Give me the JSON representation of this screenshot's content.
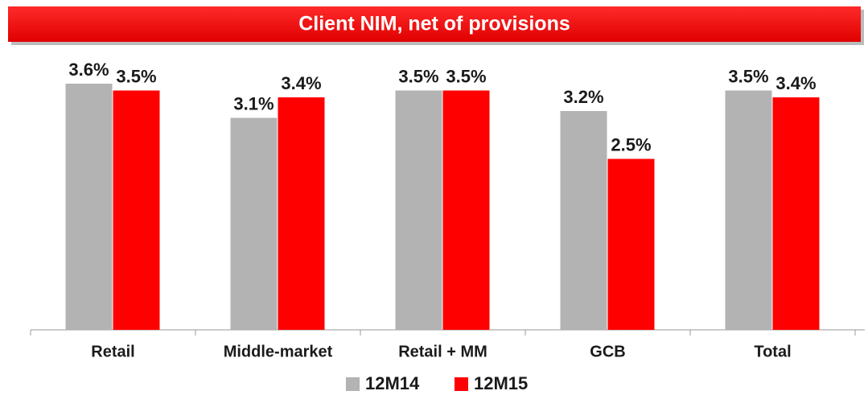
{
  "chart_data": {
    "type": "bar",
    "title": "Client NIM, net of provisions",
    "categories": [
      "Retail",
      "Middle-market",
      "Retail + MM",
      "GCB",
      "Total"
    ],
    "series": [
      {
        "name": "12M14",
        "color": "#b3b3b3",
        "values": [
          3.6,
          3.1,
          3.5,
          3.2,
          3.5
        ],
        "value_labels": [
          "3.6%",
          "3.1%",
          "3.5%",
          "3.2%",
          "3.5%"
        ]
      },
      {
        "name": "12M15",
        "color": "#ff0000",
        "values": [
          3.5,
          3.4,
          3.5,
          2.5,
          3.4
        ],
        "value_labels": [
          "3.5%",
          "3.4%",
          "3.5%",
          "2.5%",
          "3.4%"
        ]
      }
    ],
    "ylim": [
      0,
      4
    ],
    "legend": "bottom"
  }
}
